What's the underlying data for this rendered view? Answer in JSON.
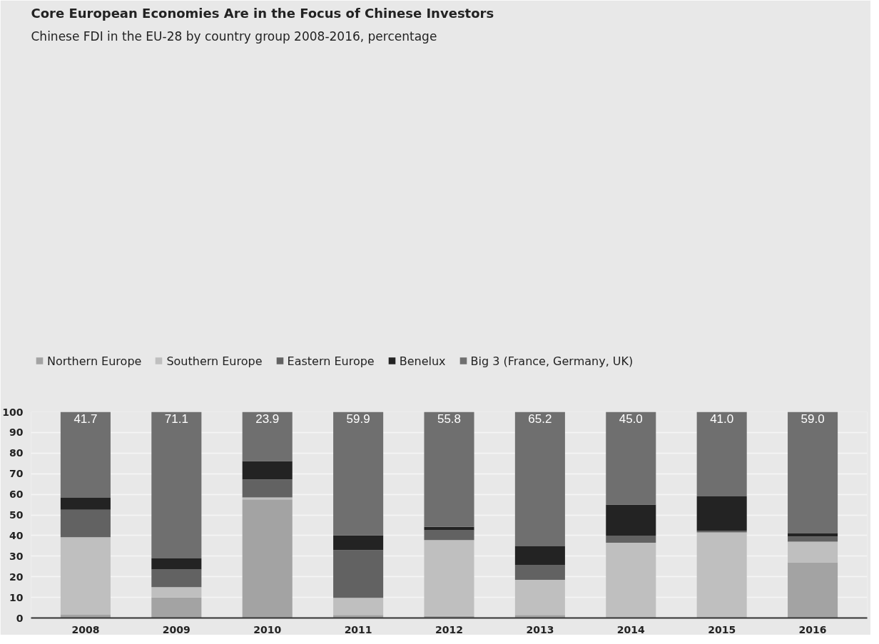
{
  "chart_data": {
    "type": "bar",
    "stacked": true,
    "title": "Core European Economies Are in the Focus of Chinese Investors",
    "subtitle": "Chinese FDI in the EU-28 by country group 2008-2016, percentage",
    "categories": [
      "2008",
      "2009",
      "2010",
      "2011",
      "2012",
      "2013",
      "2014",
      "2015",
      "2016"
    ],
    "series": [
      {
        "name": "Northern Europe",
        "color": "#a3a3a3",
        "values": [
          1.6,
          10,
          57.5,
          1.5,
          1.0,
          1.5,
          0,
          0,
          27
        ]
      },
      {
        "name": "Southern Europe",
        "color": "#bfbfbf",
        "values": [
          37.6,
          5,
          1.0,
          8.3,
          36.8,
          17,
          36.5,
          41.5,
          10
        ]
      },
      {
        "name": "Eastern Europe",
        "color": "#626262",
        "values": [
          13.3,
          8.5,
          8.7,
          23.2,
          4.8,
          7.3,
          3.5,
          0.7,
          2.5
        ]
      },
      {
        "name": "Benelux",
        "color": "#232323",
        "values": [
          5.8,
          5.4,
          8.9,
          7.1,
          1.6,
          9.0,
          15,
          16.8,
          1.5
        ]
      },
      {
        "name": "Big 3 (France, Germany, UK)",
        "color": "#6f6f6f",
        "values": [
          41.7,
          71.1,
          23.9,
          59.9,
          55.8,
          65.2,
          45.0,
          41.0,
          59.0
        ],
        "value_labels": [
          "41.7",
          "71.1",
          "23.9",
          "59.9",
          "55.8",
          "65.2",
          "45.0",
          "41.0",
          "59.0"
        ]
      }
    ],
    "ylim": [
      0,
      100
    ],
    "yticks": [
      0,
      10,
      20,
      30,
      40,
      50,
      60,
      70,
      80,
      90,
      100
    ],
    "grid": "y",
    "legend": "top left"
  }
}
